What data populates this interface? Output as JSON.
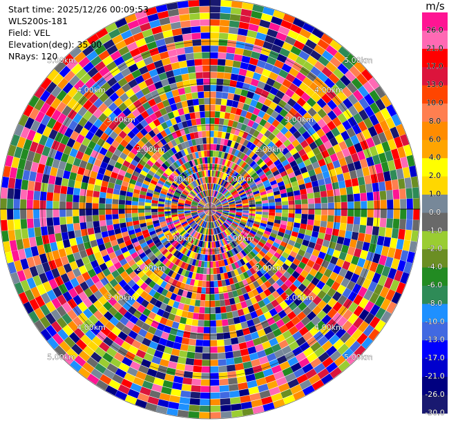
{
  "info": {
    "start_time": "Start time: 2025/12/26 00:09:53",
    "instrument": "WLS200s-181",
    "field": "Field: VEL",
    "elevation": "Elevation(deg): 35.00",
    "nrays": "NRays: 120"
  },
  "chart_data": {
    "type": "heatmap",
    "projection": "polar-ppi",
    "title": "",
    "n_rays": 120,
    "range_rings_labels": [
      "1.00km",
      "2.00km",
      "3.00km",
      "4.00km",
      "5.00km"
    ],
    "range_rings_km": [
      1,
      2,
      3,
      4,
      5
    ],
    "max_range_km": 5.0,
    "colorbar": {
      "unit": "m/s",
      "tick_labels": [
        "26.0",
        "21.0",
        "17.0",
        "13.0",
        "10.0",
        "8.0",
        "6.0",
        "4.0",
        "2.0",
        "1.0",
        "0.0",
        "-1.0",
        "-2.0",
        "-4.0",
        "-6.0",
        "-8.0",
        "-10.0",
        "-13.0",
        "-17.0",
        "-21.0",
        "-26.0",
        "-30.0"
      ],
      "colors": [
        "#ff1493",
        "#ff69b4",
        "#ff0000",
        "#dc143c",
        "#ff4500",
        "#ff7f50",
        "#ff8c00",
        "#ffa500",
        "#ffff00",
        "#ffd700",
        "#778899",
        "#696969",
        "#9acd32",
        "#6b8e23",
        "#228b22",
        "#2e8b57",
        "#1e90ff",
        "#4169e1",
        "#0000ff",
        "#0000cd",
        "#000080",
        "#191970"
      ]
    }
  }
}
